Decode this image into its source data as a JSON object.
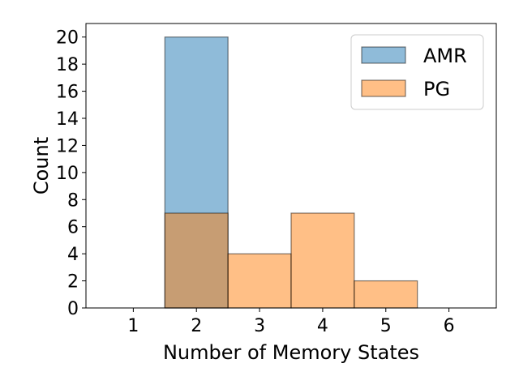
{
  "chart_data": {
    "type": "bar",
    "xlabel": "Number of Memory States",
    "ylabel": "Count",
    "xlim": [
      0.25,
      6.75
    ],
    "ylim": [
      0,
      21
    ],
    "xticks": [
      "1",
      "2",
      "3",
      "4",
      "5",
      "6"
    ],
    "yticks": [
      "0",
      "2",
      "4",
      "6",
      "8",
      "10",
      "12",
      "14",
      "16",
      "18",
      "20"
    ],
    "bins": [
      1,
      2,
      3,
      4,
      5,
      6
    ],
    "series": [
      {
        "name": "AMR",
        "values": [
          0,
          20,
          0,
          0,
          0,
          0
        ],
        "color": "#1f77b4",
        "alpha": 0.5
      },
      {
        "name": "PG",
        "values": [
          0,
          7,
          4,
          7,
          2,
          0
        ],
        "color": "#ff7f0e",
        "alpha": 0.5
      }
    ],
    "legend": {
      "position": "top-right"
    },
    "grid": false
  }
}
